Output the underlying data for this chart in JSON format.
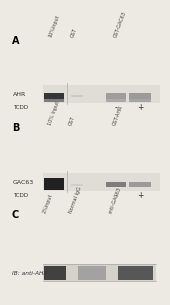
{
  "bg_color": "#ede9e3",
  "panel_A": {
    "label": "A",
    "col_labels": [
      "10%input",
      "GST",
      "GST-GAC63"
    ],
    "row_label": "AHR",
    "tcdd_label": "TCDD",
    "tcdd_vals": [
      "-",
      "+"
    ]
  },
  "panel_B": {
    "label": "B",
    "col_labels": [
      "10% Input",
      "GST",
      "GST-AHR"
    ],
    "row_label": "GAC63",
    "tcdd_label": "TCDD",
    "tcdd_vals": [
      "-",
      "+"
    ]
  },
  "panel_C": {
    "label": "C",
    "col_labels": [
      "2%input",
      "Normal IgG",
      "anti-GAC63"
    ],
    "ib_label": "IB: anti-AHR"
  },
  "dark": "#1e1e1e",
  "med_dark": "#555555",
  "med": "#888888",
  "light": "#bbbbbb",
  "very_light": "#d8d8d8",
  "blot_bg": "#ddd9d2"
}
